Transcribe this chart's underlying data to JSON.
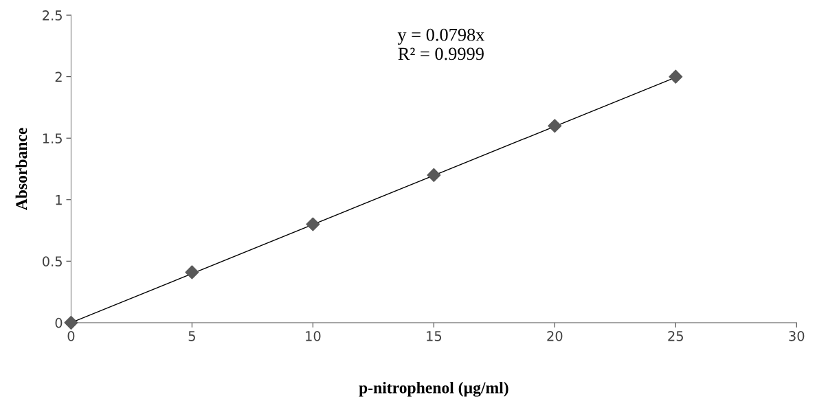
{
  "chart_data": {
    "type": "scatter",
    "xlabel": "p-nitrophenol (µg/ml)",
    "ylabel": "Absorbance",
    "xlim": [
      0,
      30
    ],
    "xticks": [
      0,
      5,
      10,
      15,
      20,
      25,
      30
    ],
    "ylim": [
      0,
      2.5
    ],
    "yticks": [
      0,
      0.5,
      1,
      1.5,
      2,
      2.5
    ],
    "grid": false,
    "legend": false,
    "series": [
      {
        "color": "#595959",
        "marker": "diamond",
        "x": [
          0,
          5,
          10,
          15,
          20,
          25
        ],
        "values": [
          0,
          0.41,
          0.8,
          1.2,
          1.6,
          2.0
        ]
      },
      {
        "type": "line",
        "color": "#000000",
        "x": [
          0,
          25
        ],
        "values": [
          0,
          1.995
        ],
        "line_style": "solid",
        "marker": "none"
      }
    ],
    "annotations": [
      "y = 0.0798x\nR² = 0.9999"
    ]
  }
}
